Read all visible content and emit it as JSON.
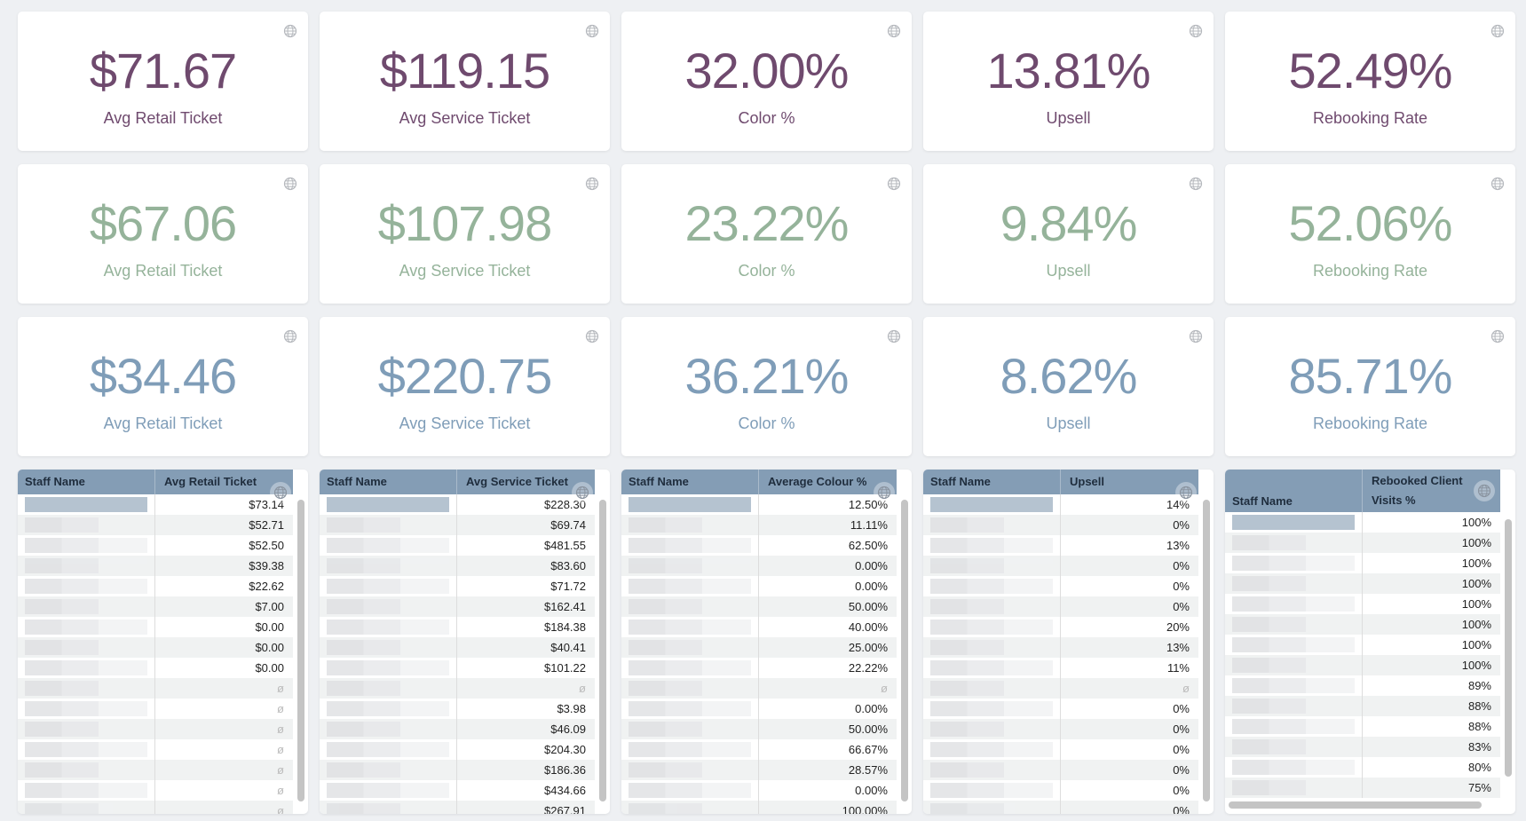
{
  "colors": {
    "purple": "#6f4a6e",
    "green": "#95b39a",
    "blue": "#7f9db8",
    "header": "#849db5"
  },
  "kpi_rows": [
    {
      "color": "#6f4a6e",
      "cards": [
        {
          "value": "$71.67",
          "label": "Avg Retail Ticket"
        },
        {
          "value": "$119.15",
          "label": "Avg Service Ticket"
        },
        {
          "value": "32.00%",
          "label": "Color %"
        },
        {
          "value": "13.81%",
          "label": "Upsell"
        },
        {
          "value": "52.49%",
          "label": "Rebooking Rate"
        }
      ]
    },
    {
      "color": "#95b39a",
      "cards": [
        {
          "value": "$67.06",
          "label": "Avg Retail Ticket"
        },
        {
          "value": "$107.98",
          "label": "Avg Service Ticket"
        },
        {
          "value": "23.22%",
          "label": "Color %"
        },
        {
          "value": "9.84%",
          "label": "Upsell"
        },
        {
          "value": "52.06%",
          "label": "Rebooking Rate"
        }
      ]
    },
    {
      "color": "#7f9db8",
      "cards": [
        {
          "value": "$34.46",
          "label": "Avg Retail Ticket"
        },
        {
          "value": "$220.75",
          "label": "Avg Service Ticket"
        },
        {
          "value": "36.21%",
          "label": "Color %"
        },
        {
          "value": "8.62%",
          "label": "Upsell"
        },
        {
          "value": "85.71%",
          "label": "Rebooking Rate"
        }
      ]
    }
  ],
  "tables": [
    {
      "col1": "Staff Name",
      "col2": "Avg Retail Ticket",
      "values": [
        "$73.14",
        "$52.71",
        "$52.50",
        "$39.38",
        "$22.62",
        "$7.00",
        "$0.00",
        "$0.00",
        "$0.00",
        "ø",
        "ø",
        "ø",
        "ø",
        "ø",
        "ø",
        "ø"
      ]
    },
    {
      "col1": "Staff Name",
      "col2": "Avg Service Ticket",
      "values": [
        "$228.30",
        "$69.74",
        "$481.55",
        "$83.60",
        "$71.72",
        "$162.41",
        "$184.38",
        "$40.41",
        "$101.22",
        "ø",
        "$3.98",
        "$46.09",
        "$204.30",
        "$186.36",
        "$434.66",
        "$267.91"
      ]
    },
    {
      "col1": "Staff Name",
      "col2": "Average Colour %",
      "values": [
        "12.50%",
        "11.11%",
        "62.50%",
        "0.00%",
        "0.00%",
        "50.00%",
        "40.00%",
        "25.00%",
        "22.22%",
        "ø",
        "0.00%",
        "50.00%",
        "66.67%",
        "28.57%",
        "0.00%",
        "100.00%"
      ]
    },
    {
      "col1": "Staff Name",
      "col2": "Upsell",
      "values": [
        "14%",
        "0%",
        "13%",
        "0%",
        "0%",
        "0%",
        "20%",
        "13%",
        "11%",
        "ø",
        "0%",
        "0%",
        "0%",
        "0%",
        "0%",
        "0%"
      ]
    },
    {
      "col1": "Staff Name",
      "col2": "Rebooked Client Visits %",
      "tall": true,
      "values": [
        "100%",
        "100%",
        "100%",
        "100%",
        "100%",
        "100%",
        "100%",
        "100%",
        "89%",
        "88%",
        "88%",
        "83%",
        "80%",
        "75%"
      ]
    }
  ]
}
